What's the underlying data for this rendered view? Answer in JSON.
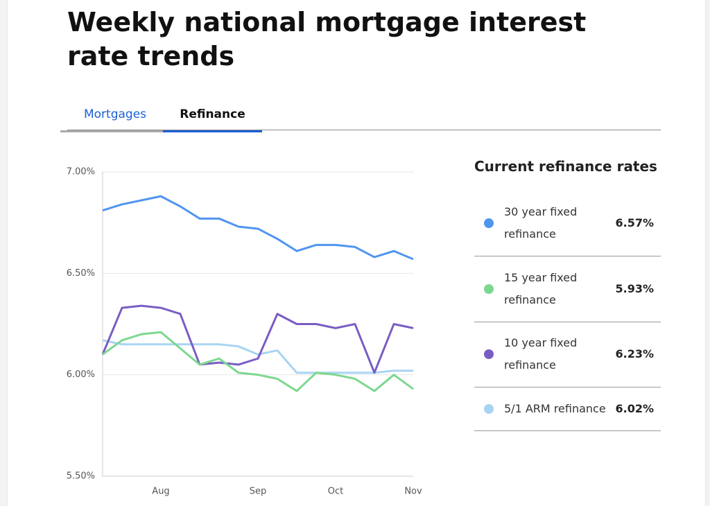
{
  "header": {
    "title": "Weekly national mortgage interest rate trends"
  },
  "tabs": [
    "Mortgages",
    "Refinance"
  ],
  "chart_data": {
    "type": "line",
    "categories": [
      null,
      null,
      null,
      "Aug",
      null,
      null,
      null,
      null,
      "Sep",
      null,
      null,
      null,
      "Oct",
      null,
      null,
      null,
      "Nov"
    ],
    "ylim": [
      5.5,
      7.0
    ],
    "yticks": [
      {
        "value": 5.5,
        "label": "5.50%"
      },
      {
        "value": 6.0,
        "label": "6.00%"
      },
      {
        "value": 6.5,
        "label": "6.50%"
      },
      {
        "value": 7.0,
        "label": "7.00%"
      }
    ],
    "grid": true,
    "series": [
      {
        "name": "30 year fixed refinance",
        "color": "#4f95f0",
        "values": [
          6.81,
          6.84,
          6.86,
          6.88,
          6.83,
          6.77,
          6.77,
          6.73,
          6.72,
          6.67,
          6.61,
          6.64,
          6.64,
          6.63,
          6.58,
          6.61,
          6.57
        ]
      },
      {
        "name": "15 year fixed refinance",
        "color": "#7dd88f",
        "values": [
          6.1,
          6.17,
          6.2,
          6.21,
          6.13,
          6.05,
          6.08,
          6.01,
          6.0,
          5.98,
          5.92,
          6.01,
          6.0,
          5.98,
          5.92,
          6.0,
          5.93
        ]
      },
      {
        "name": "10 year fixed refinance",
        "color": "#7a5cc4",
        "values": [
          6.1,
          6.33,
          6.34,
          6.33,
          6.3,
          6.05,
          6.06,
          6.05,
          6.08,
          6.3,
          6.25,
          6.25,
          6.23,
          6.25,
          6.01,
          6.25,
          6.23
        ]
      },
      {
        "name": "5/1 ARM refinance",
        "color": "#a8d4f2",
        "values": [
          6.17,
          6.15,
          6.15,
          6.15,
          6.15,
          6.15,
          6.15,
          6.14,
          6.1,
          6.12,
          6.01,
          6.01,
          6.01,
          6.01,
          6.01,
          6.02,
          6.02
        ]
      }
    ]
  },
  "rates_panel": {
    "title": "Current refinance rates",
    "rates": [
      "6.57%",
      "5.93%",
      "6.23%",
      "6.02%"
    ]
  }
}
